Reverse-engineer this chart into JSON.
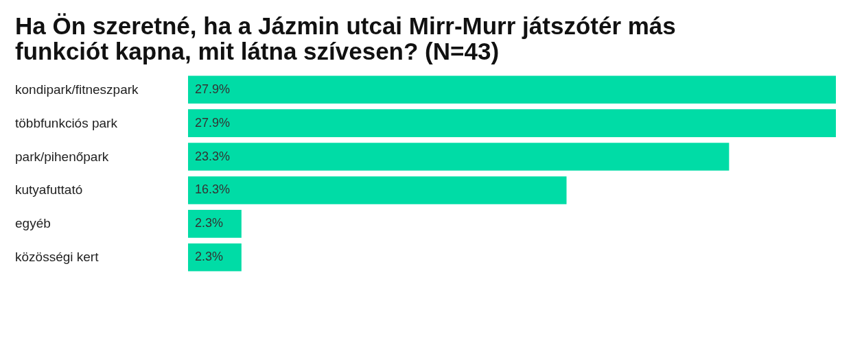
{
  "chart_data": {
    "type": "bar",
    "orientation": "horizontal",
    "title": "Ha Ön szeretné, ha a Jázmin utcai Mirr-Murr játszótér más funkciót kapna, mit látna szívesen? (N=43)",
    "categories": [
      "kondipark/fitneszpark",
      "többfunkciós park",
      "park/pihenőpark",
      "kutyafuttató",
      "egyéb",
      "közösségi kert"
    ],
    "values": [
      27.9,
      27.9,
      23.3,
      16.3,
      2.3,
      2.3
    ],
    "value_labels": [
      "27.9%",
      "27.9%",
      "23.3%",
      "16.3%",
      "2.3%",
      "2.3%"
    ],
    "color": "#00dca6",
    "grid": false
  }
}
